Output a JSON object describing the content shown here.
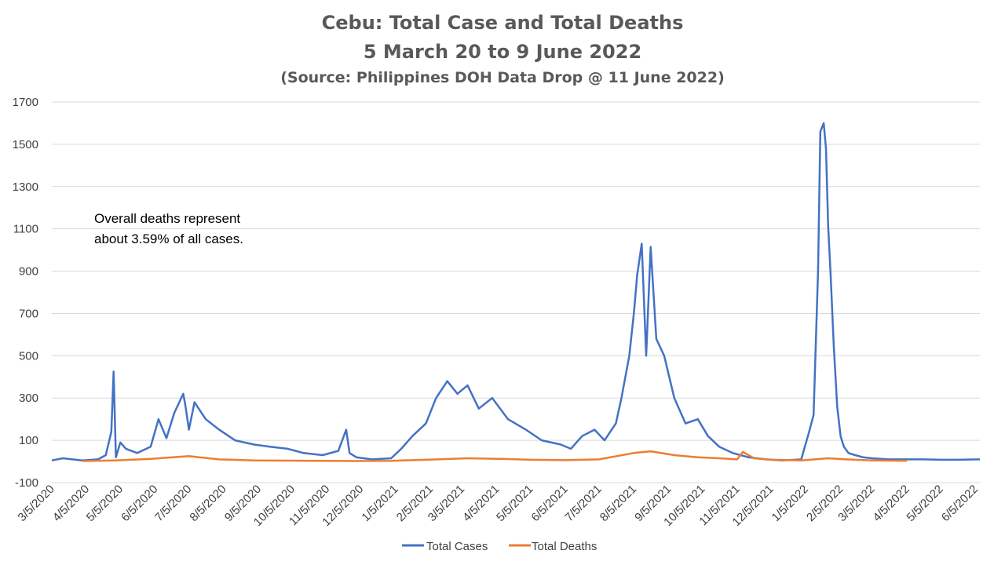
{
  "chart_data": {
    "type": "line",
    "title": "Cebu: Total Case and Total Deaths",
    "subtitle": "5 March 20 to 9 June 2022",
    "source": "(Source: Philippines DOH Data Drop @ 11 June 2022)",
    "annotation_lines": [
      "Overall deaths represent",
      "about 3.59% of all cases."
    ],
    "ylim": [
      -100,
      1700
    ],
    "yticks": [
      -100,
      100,
      300,
      500,
      700,
      900,
      1100,
      1300,
      1500,
      1700
    ],
    "xlim": [
      "2020-03-05",
      "2022-06-09"
    ],
    "xticks": [
      "3/5/2020",
      "4/5/2020",
      "5/5/2020",
      "6/5/2020",
      "7/5/2020",
      "8/5/2020",
      "9/5/2020",
      "10/5/2020",
      "11/5/2020",
      "12/5/2020",
      "1/5/2021",
      "2/5/2021",
      "3/5/2021",
      "4/5/2021",
      "5/5/2021",
      "6/5/2021",
      "7/5/2021",
      "8/5/2021",
      "9/5/2021",
      "10/5/2021",
      "11/5/2021",
      "12/5/2021",
      "1/5/2022",
      "2/5/2022",
      "3/5/2022",
      "4/5/2022",
      "5/5/2022",
      "6/5/2022"
    ],
    "grid": true,
    "legend_position": "bottom",
    "series": [
      {
        "name": "Total Cases",
        "color": "#4472c4",
        "x": [
          "2020-03-05",
          "2020-03-15",
          "2020-04-01",
          "2020-04-15",
          "2020-04-22",
          "2020-04-27",
          "2020-04-29",
          "2020-05-01",
          "2020-05-05",
          "2020-05-10",
          "2020-05-20",
          "2020-06-01",
          "2020-06-08",
          "2020-06-15",
          "2020-06-22",
          "2020-06-30",
          "2020-07-02",
          "2020-07-05",
          "2020-07-10",
          "2020-07-20",
          "2020-08-01",
          "2020-08-15",
          "2020-09-01",
          "2020-09-15",
          "2020-10-01",
          "2020-10-15",
          "2020-11-01",
          "2020-11-15",
          "2020-11-22",
          "2020-11-25",
          "2020-12-01",
          "2020-12-15",
          "2021-01-01",
          "2021-01-10",
          "2021-01-20",
          "2021-02-01",
          "2021-02-10",
          "2021-02-20",
          "2021-03-01",
          "2021-03-10",
          "2021-03-20",
          "2021-04-01",
          "2021-04-15",
          "2021-05-01",
          "2021-05-15",
          "2021-06-01",
          "2021-06-10",
          "2021-06-20",
          "2021-07-01",
          "2021-07-10",
          "2021-07-20",
          "2021-07-25",
          "2021-08-01",
          "2021-08-05",
          "2021-08-08",
          "2021-08-12",
          "2021-08-16",
          "2021-08-20",
          "2021-08-25",
          "2021-09-01",
          "2021-09-10",
          "2021-09-20",
          "2021-10-01",
          "2021-10-10",
          "2021-10-20",
          "2021-11-01",
          "2021-11-15",
          "2021-12-01",
          "2021-12-15",
          "2022-01-01",
          "2022-01-08",
          "2022-01-12",
          "2022-01-16",
          "2022-01-18",
          "2022-01-21",
          "2022-01-23",
          "2022-01-25",
          "2022-01-27",
          "2022-01-30",
          "2022-02-02",
          "2022-02-05",
          "2022-02-08",
          "2022-02-12",
          "2022-02-18",
          "2022-02-25",
          "2022-03-05",
          "2022-03-20",
          "2022-04-05",
          "2022-04-20",
          "2022-05-05",
          "2022-05-20",
          "2022-06-09"
        ],
        "values": [
          5,
          15,
          5,
          10,
          30,
          140,
          425,
          20,
          90,
          60,
          40,
          70,
          200,
          110,
          230,
          320,
          260,
          150,
          280,
          200,
          150,
          100,
          80,
          70,
          60,
          40,
          30,
          50,
          150,
          40,
          20,
          10,
          15,
          60,
          120,
          180,
          300,
          380,
          320,
          360,
          250,
          300,
          200,
          150,
          100,
          80,
          60,
          120,
          150,
          100,
          180,
          300,
          500,
          700,
          880,
          1030,
          500,
          1015,
          580,
          500,
          300,
          180,
          200,
          120,
          70,
          40,
          20,
          10,
          5,
          10,
          140,
          220,
          900,
          1560,
          1600,
          1480,
          1110,
          900,
          540,
          260,
          120,
          70,
          40,
          30,
          20,
          15,
          10,
          10,
          10,
          8,
          8,
          10
        ]
      },
      {
        "name": "Total Deaths",
        "color": "#ed7d31",
        "x": [
          "2020-04-01",
          "2020-05-01",
          "2020-06-01",
          "2020-07-05",
          "2020-08-01",
          "2020-09-01",
          "2020-10-01",
          "2020-11-01",
          "2020-12-01",
          "2021-01-01",
          "2021-02-01",
          "2021-03-10",
          "2021-04-10",
          "2021-05-05",
          "2021-06-05",
          "2021-07-05",
          "2021-08-05",
          "2021-08-20",
          "2021-09-10",
          "2021-10-01",
          "2021-10-20",
          "2021-11-05",
          "2021-11-10",
          "2021-11-20",
          "2021-12-05",
          "2022-01-01",
          "2022-01-25",
          "2022-02-10",
          "2022-03-05",
          "2022-04-05"
        ],
        "values": [
          2,
          5,
          12,
          25,
          10,
          5,
          4,
          3,
          2,
          3,
          8,
          15,
          12,
          8,
          6,
          10,
          40,
          48,
          30,
          20,
          15,
          10,
          45,
          15,
          8,
          5,
          15,
          10,
          5,
          3
        ]
      }
    ]
  }
}
